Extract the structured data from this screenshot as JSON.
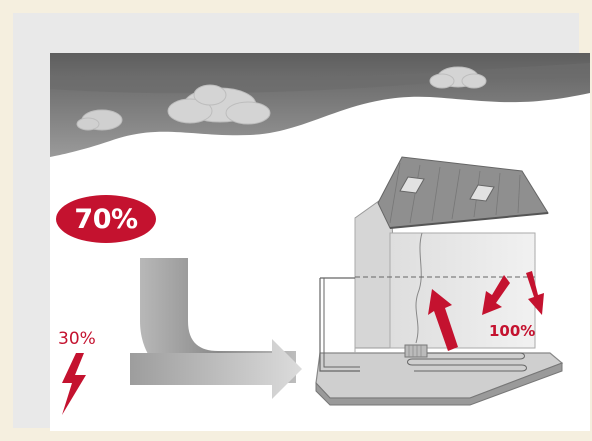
{
  "solar_badge": {
    "text": "70%"
  },
  "electric_label": {
    "text": "30%"
  },
  "output_label": {
    "text": "100%"
  },
  "colors": {
    "accent": "#c4122f",
    "sky": "#7d7d7d",
    "background": "#f5efdf"
  },
  "icons": [
    "lightning-icon",
    "cloud-icon",
    "arrow-icon"
  ]
}
